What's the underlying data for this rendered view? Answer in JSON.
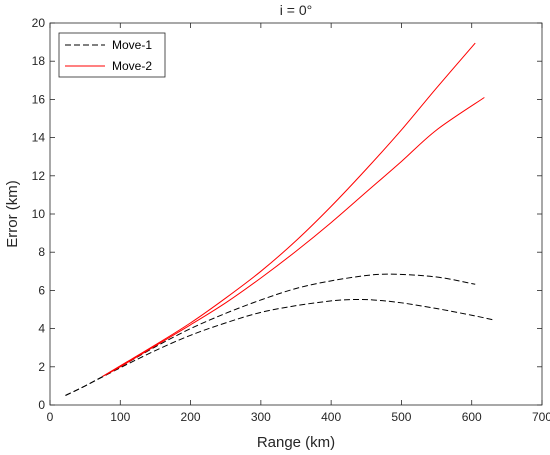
{
  "chart_data": {
    "type": "line",
    "title": "i = 0°",
    "xlabel": "Range (km)",
    "ylabel": "Error (km)",
    "xlim": [
      0,
      700
    ],
    "ylim": [
      0,
      20
    ],
    "xticks": [
      0,
      100,
      200,
      300,
      400,
      500,
      600,
      700
    ],
    "yticks": [
      0,
      2,
      4,
      6,
      8,
      10,
      12,
      14,
      16,
      18,
      20
    ],
    "grid": false,
    "legend_position": "top-left",
    "series": [
      {
        "name": "Move-1",
        "color": "#000000",
        "style": "dashed",
        "legend_label": "Move-1",
        "curves": [
          [
            [
              22,
              0.5
            ],
            [
              50,
              1.0
            ],
            [
              100,
              2.0
            ],
            [
              150,
              3.05
            ],
            [
              200,
              4.0
            ],
            [
              250,
              4.8
            ],
            [
              300,
              5.5
            ],
            [
              350,
              6.1
            ],
            [
              400,
              6.5
            ],
            [
              450,
              6.78
            ],
            [
              480,
              6.85
            ],
            [
              520,
              6.8
            ],
            [
              560,
              6.65
            ],
            [
              605,
              6.32
            ]
          ],
          [
            [
              22,
              0.5
            ],
            [
              50,
              1.0
            ],
            [
              100,
              1.95
            ],
            [
              150,
              2.85
            ],
            [
              200,
              3.65
            ],
            [
              250,
              4.3
            ],
            [
              300,
              4.85
            ],
            [
              350,
              5.2
            ],
            [
              400,
              5.45
            ],
            [
              430,
              5.52
            ],
            [
              460,
              5.5
            ],
            [
              500,
              5.35
            ],
            [
              550,
              5.05
            ],
            [
              600,
              4.7
            ],
            [
              632,
              4.45
            ]
          ]
        ]
      },
      {
        "name": "Move-2",
        "color": "#ff0000",
        "style": "solid",
        "legend_label": "Move-2",
        "curves": [
          [
            [
              75,
              1.5
            ],
            [
              100,
              2.05
            ],
            [
              150,
              3.15
            ],
            [
              200,
              4.3
            ],
            [
              250,
              5.6
            ],
            [
              300,
              7.0
            ],
            [
              350,
              8.6
            ],
            [
              400,
              10.4
            ],
            [
              450,
              12.35
            ],
            [
              500,
              14.4
            ],
            [
              550,
              16.6
            ],
            [
              605,
              18.95
            ]
          ],
          [
            [
              75,
              1.5
            ],
            [
              100,
              2.0
            ],
            [
              150,
              3.1
            ],
            [
              200,
              4.2
            ],
            [
              250,
              5.35
            ],
            [
              300,
              6.65
            ],
            [
              350,
              8.05
            ],
            [
              400,
              9.55
            ],
            [
              450,
              11.15
            ],
            [
              500,
              12.75
            ],
            [
              550,
              14.4
            ],
            [
              618,
              16.1
            ]
          ]
        ]
      }
    ]
  }
}
